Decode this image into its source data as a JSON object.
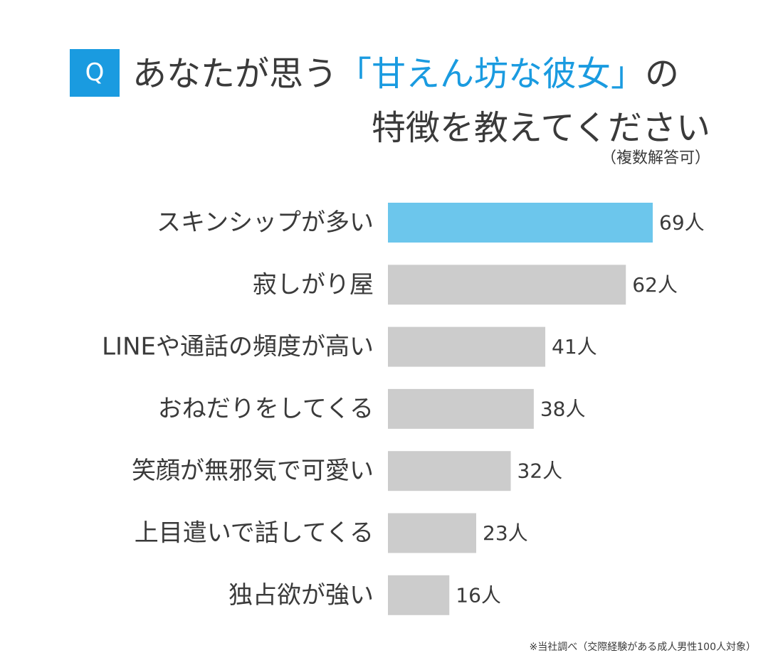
{
  "title": {
    "badge": "Q",
    "line1_pre": "あなたが思う",
    "line1_highlight": "「甘えん坊な彼女」",
    "line1_post": "の",
    "line2": "特徴を教えてください",
    "note": "（複数解答可）"
  },
  "footnote": "※当社調べ（交際経験がある成人男性100人対象）",
  "colors": {
    "accent": "#1a9be0",
    "highlight_bar": "#6cc6ec",
    "bar": "#cccccc",
    "text": "#3a3a3a"
  },
  "chart_data": {
    "type": "bar",
    "orientation": "horizontal",
    "unit": "人",
    "categories": [
      "スキンシップが多い",
      "寂しがり屋",
      "LINEや通話の頻度が高い",
      "おねだりをしてくる",
      "笑顔が無邪気で可愛い",
      "上目遣いで話してくる",
      "独占欲が強い"
    ],
    "values": [
      69,
      62,
      41,
      38,
      32,
      23,
      16
    ],
    "value_labels": [
      "69人",
      "62人",
      "41人",
      "38人",
      "32人",
      "23人",
      "16人"
    ],
    "highlight_index": 0,
    "xlim": [
      0,
      69
    ],
    "grid": false,
    "legend": "none"
  }
}
